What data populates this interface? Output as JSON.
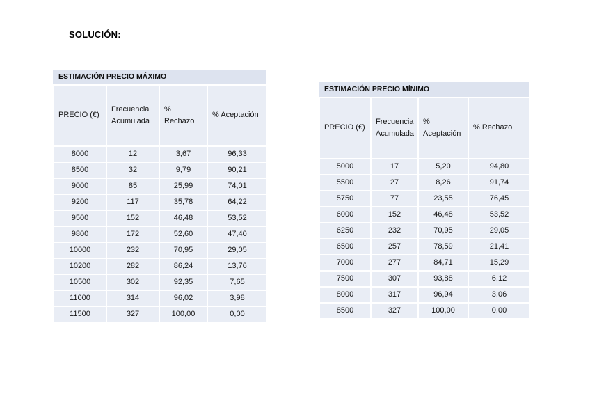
{
  "heading": "SOLUCIÓN:",
  "colors": {
    "title_band": "#dde3ef",
    "cell_fill": "#e9edf5"
  },
  "tables": {
    "maximo": {
      "title": "ESTIMACIÓN PRECIO MÁXIMO",
      "columns": [
        "PRECIO (€)",
        "Frecuencia Acumulada",
        "% Rechazo",
        "% Aceptación"
      ],
      "rows": [
        [
          "8000",
          "12",
          "3,67",
          "96,33"
        ],
        [
          "8500",
          "32",
          "9,79",
          "90,21"
        ],
        [
          "9000",
          "85",
          "25,99",
          "74,01"
        ],
        [
          "9200",
          "117",
          "35,78",
          "64,22"
        ],
        [
          "9500",
          "152",
          "46,48",
          "53,52"
        ],
        [
          "9800",
          "172",
          "52,60",
          "47,40"
        ],
        [
          "10000",
          "232",
          "70,95",
          "29,05"
        ],
        [
          "10200",
          "282",
          "86,24",
          "13,76"
        ],
        [
          "10500",
          "302",
          "92,35",
          "7,65"
        ],
        [
          "11000",
          "314",
          "96,02",
          "3,98"
        ],
        [
          "11500",
          "327",
          "100,00",
          "0,00"
        ]
      ]
    },
    "minimo": {
      "title": "ESTIMACIÓN PRECIO MÍNIMO",
      "columns": [
        "PRECIO (€)",
        "Frecuencia Acumulada",
        "% Aceptación",
        "% Rechazo"
      ],
      "rows": [
        [
          "5000",
          "17",
          "5,20",
          "94,80"
        ],
        [
          "5500",
          "27",
          "8,26",
          "91,74"
        ],
        [
          "5750",
          "77",
          "23,55",
          "76,45"
        ],
        [
          "6000",
          "152",
          "46,48",
          "53,52"
        ],
        [
          "6250",
          "232",
          "70,95",
          "29,05"
        ],
        [
          "6500",
          "257",
          "78,59",
          "21,41"
        ],
        [
          "7000",
          "277",
          "84,71",
          "15,29"
        ],
        [
          "7500",
          "307",
          "93,88",
          "6,12"
        ],
        [
          "8000",
          "317",
          "96,94",
          "3,06"
        ],
        [
          "8500",
          "327",
          "100,00",
          "0,00"
        ]
      ]
    }
  }
}
